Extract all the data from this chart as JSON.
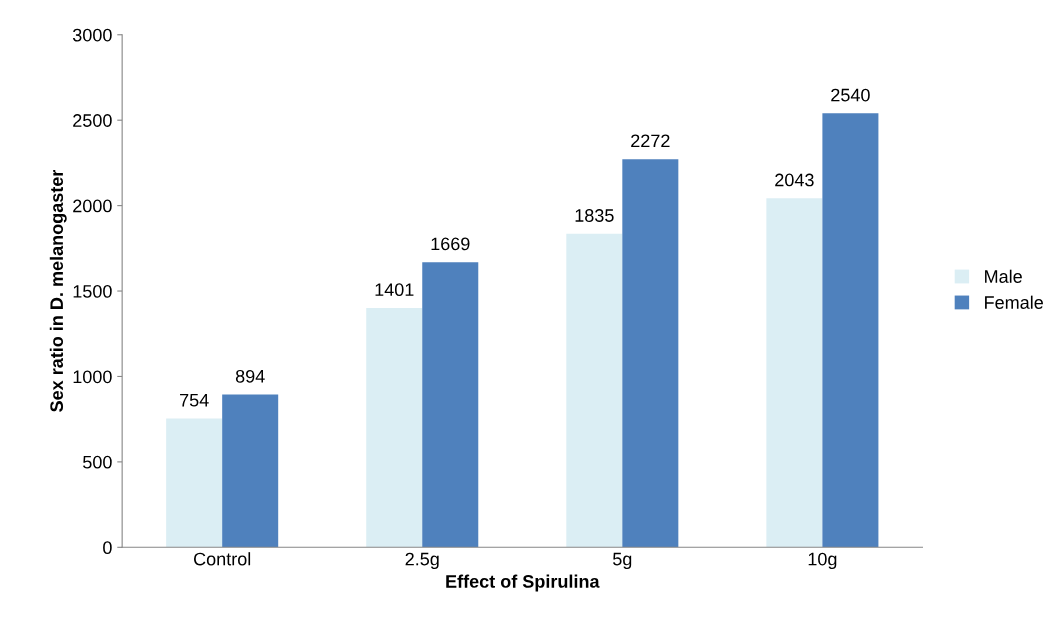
{
  "chart_data": {
    "type": "bar",
    "xlabel": "Effect of Spirulina",
    "ylabel": "Sex ratio in D. melanogaster",
    "categories": [
      "Control",
      "2.5g",
      "5g",
      "10g"
    ],
    "series": [
      {
        "name": "Male",
        "color": "#dbeef4",
        "values": [
          754,
          1401,
          1835,
          2043
        ]
      },
      {
        "name": "Female",
        "color": "#4f81bd",
        "values": [
          894,
          1669,
          2272,
          2540
        ]
      }
    ],
    "ylim": [
      0,
      3000
    ],
    "yticks": [
      0,
      500,
      1000,
      1500,
      2000,
      2500,
      3000
    ],
    "grid": false,
    "legend": "right",
    "data_labels": true
  }
}
